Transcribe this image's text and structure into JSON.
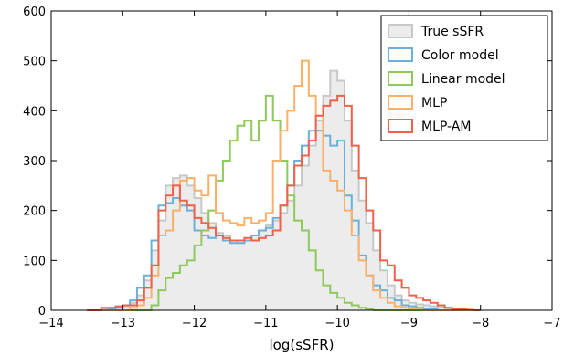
{
  "chart_data": {
    "type": "histogram-step",
    "title": "",
    "xlabel": "log(sSFR)",
    "ylabel": "",
    "xlim": [
      -14,
      -7
    ],
    "ylim": [
      0,
      600
    ],
    "xticks": [
      -14,
      -13,
      -12,
      -11,
      -10,
      -9,
      -8,
      -7
    ],
    "xtick_labels": [
      "−14",
      "−13",
      "−12",
      "−11",
      "−10",
      "−9",
      "−8",
      "−7"
    ],
    "yticks": [
      0,
      100,
      200,
      300,
      400,
      500,
      600
    ],
    "ytick_labels": [
      "0",
      "100",
      "200",
      "300",
      "400",
      "500",
      "600"
    ],
    "grid": false,
    "legend_position": "top-right",
    "bin_edges": [
      -13.5,
      -13.4,
      -13.3,
      -13.2,
      -13.1,
      -13.0,
      -12.9,
      -12.8,
      -12.7,
      -12.6,
      -12.5,
      -12.4,
      -12.3,
      -12.2,
      -12.1,
      -12.0,
      -11.9,
      -11.8,
      -11.7,
      -11.6,
      -11.5,
      -11.4,
      -11.3,
      -11.2,
      -11.1,
      -11.0,
      -10.9,
      -10.8,
      -10.7,
      -10.6,
      -10.5,
      -10.4,
      -10.3,
      -10.2,
      -10.1,
      -10.0,
      -9.9,
      -9.8,
      -9.7,
      -9.6,
      -9.5,
      -9.4,
      -9.3,
      -9.2,
      -9.1,
      -9.0,
      -8.9,
      -8.8,
      -8.7,
      -8.6,
      -8.5,
      -8.4,
      -8.3,
      -8.2,
      -8.1,
      -8.0
    ],
    "series": [
      {
        "name": "True sSFR",
        "color": "#c8c8c8",
        "fill": "#ececec",
        "values": [
          0,
          0,
          2,
          3,
          5,
          8,
          15,
          30,
          60,
          120,
          180,
          250,
          265,
          270,
          250,
          225,
          195,
          175,
          155,
          150,
          140,
          135,
          140,
          150,
          160,
          170,
          180,
          195,
          220,
          250,
          290,
          330,
          380,
          430,
          480,
          460,
          380,
          280,
          220,
          175,
          120,
          80,
          50,
          30,
          20,
          15,
          12,
          10,
          8,
          6,
          4,
          3,
          2,
          1,
          0
        ]
      },
      {
        "name": "Color model",
        "color": "#6bb0d8",
        "values": [
          0,
          0,
          0,
          2,
          5,
          10,
          20,
          45,
          70,
          140,
          210,
          215,
          225,
          210,
          200,
          160,
          150,
          145,
          150,
          140,
          135,
          135,
          140,
          150,
          160,
          165,
          185,
          210,
          250,
          300,
          330,
          360,
          360,
          350,
          330,
          340,
          230,
          180,
          110,
          70,
          50,
          40,
          25,
          20,
          10,
          8,
          5,
          3,
          2,
          0,
          0,
          0,
          0,
          0,
          0
        ]
      },
      {
        "name": "Linear model",
        "color": "#8fc95c",
        "values": [
          0,
          0,
          0,
          0,
          0,
          0,
          0,
          0,
          0,
          10,
          40,
          65,
          75,
          90,
          100,
          130,
          160,
          200,
          260,
          300,
          340,
          370,
          380,
          340,
          380,
          430,
          380,
          300,
          230,
          180,
          160,
          120,
          80,
          50,
          35,
          25,
          15,
          10,
          5,
          2,
          0,
          0,
          0,
          0,
          0,
          0,
          0,
          0,
          0,
          0,
          0,
          0,
          0,
          0,
          0
        ]
      },
      {
        "name": "MLP",
        "color": "#fab06a",
        "values": [
          0,
          0,
          0,
          0,
          0,
          0,
          5,
          10,
          25,
          70,
          150,
          160,
          200,
          260,
          265,
          240,
          230,
          270,
          195,
          180,
          175,
          170,
          185,
          175,
          180,
          195,
          300,
          360,
          400,
          450,
          500,
          430,
          390,
          280,
          260,
          240,
          200,
          150,
          100,
          70,
          40,
          25,
          15,
          8,
          5,
          3,
          1,
          0,
          0,
          0,
          0,
          0,
          0,
          0,
          0
        ]
      },
      {
        "name": "MLP-AM",
        "color": "#f0604a",
        "values": [
          0,
          0,
          5,
          5,
          8,
          10,
          10,
          20,
          45,
          90,
          200,
          230,
          250,
          220,
          210,
          185,
          175,
          165,
          150,
          145,
          140,
          140,
          145,
          140,
          145,
          150,
          160,
          210,
          250,
          290,
          310,
          340,
          390,
          410,
          420,
          430,
          410,
          330,
          265,
          200,
          160,
          100,
          90,
          60,
          45,
          30,
          25,
          20,
          15,
          10,
          5,
          3,
          2,
          1,
          0
        ]
      }
    ]
  }
}
